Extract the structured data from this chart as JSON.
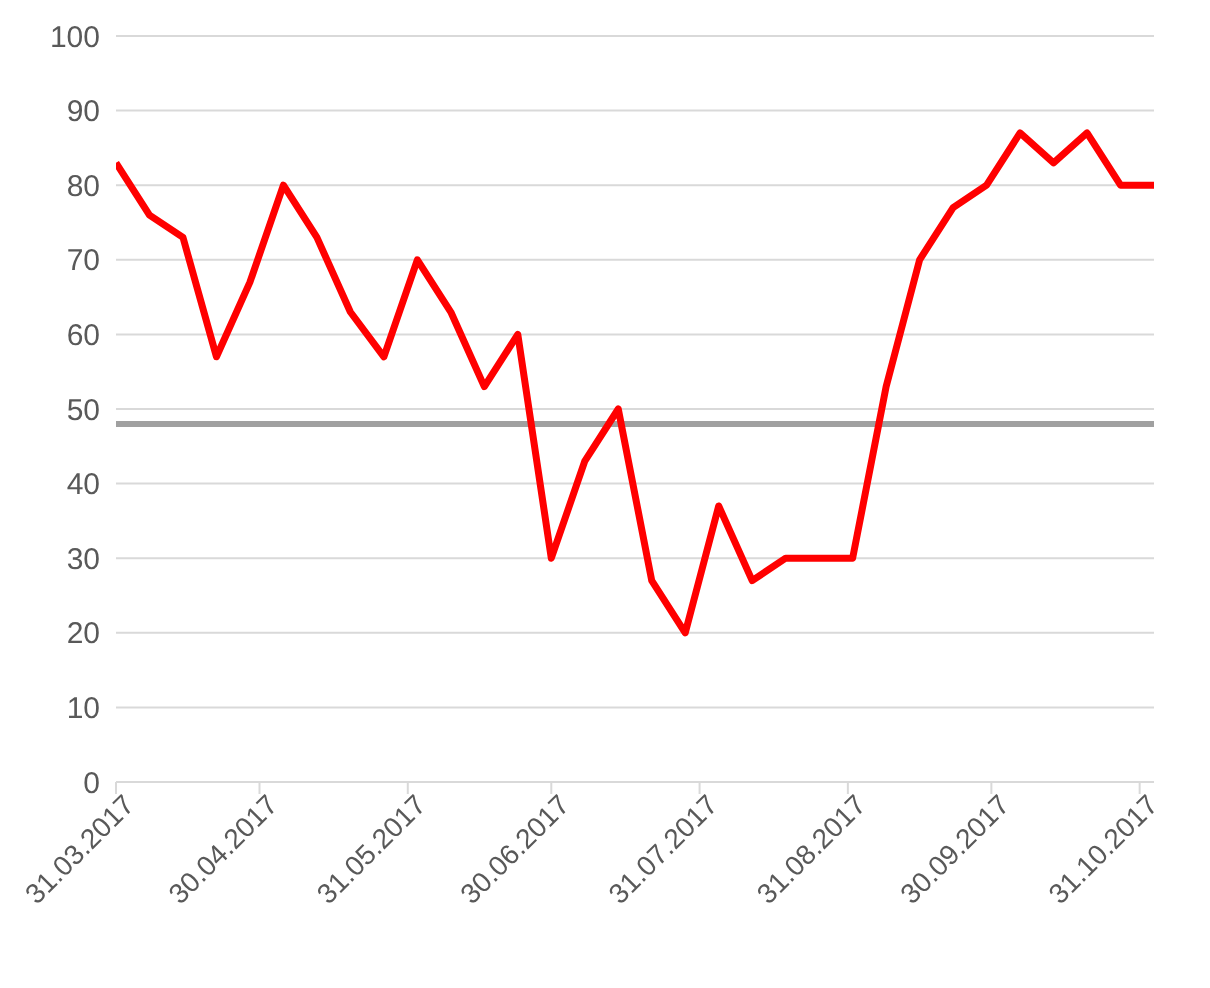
{
  "chart_data": {
    "type": "line",
    "x": [
      "2017-03-31",
      "2017-04-07",
      "2017-04-14",
      "2017-04-21",
      "2017-04-28",
      "2017-05-05",
      "2017-05-12",
      "2017-05-19",
      "2017-05-26",
      "2017-06-02",
      "2017-06-09",
      "2017-06-16",
      "2017-06-23",
      "2017-06-30",
      "2017-07-07",
      "2017-07-14",
      "2017-07-21",
      "2017-07-28",
      "2017-08-04",
      "2017-08-11",
      "2017-08-18",
      "2017-08-25",
      "2017-09-01",
      "2017-09-08",
      "2017-09-15",
      "2017-09-22",
      "2017-09-29",
      "2017-10-06",
      "2017-10-13",
      "2017-10-20",
      "2017-10-27",
      "2017-11-03"
    ],
    "series": [
      {
        "color": "#ff0000",
        "values": [
          83,
          76,
          73,
          57,
          67,
          80,
          73,
          63,
          57,
          70,
          63,
          53,
          60,
          30,
          43,
          50,
          27,
          20,
          37,
          27,
          30,
          30,
          30,
          53,
          70,
          77,
          80,
          87,
          83,
          87,
          80,
          80
        ]
      }
    ],
    "xlim": [
      "2017-03-31",
      "2017-11-03"
    ],
    "xticks": [
      {
        "value": "2017-03-31",
        "label": "31.03.2017"
      },
      {
        "value": "2017-04-30",
        "label": "30.04.2017"
      },
      {
        "value": "2017-05-31",
        "label": "31.05.2017"
      },
      {
        "value": "2017-06-30",
        "label": "30.06.2017"
      },
      {
        "value": "2017-07-31",
        "label": "31.07.2017"
      },
      {
        "value": "2017-08-31",
        "label": "31.08.2017"
      },
      {
        "value": "2017-09-30",
        "label": "30.09.2017"
      },
      {
        "value": "2017-10-31",
        "label": "31.10.2017"
      }
    ],
    "ylim": [
      0,
      100
    ],
    "yticks": [
      0,
      10,
      20,
      30,
      40,
      50,
      60,
      70,
      80,
      90,
      100
    ],
    "grid": "y",
    "legend": false,
    "marker": "none",
    "line_style": "solid",
    "ref_lines": [
      {
        "axis": "y",
        "value": 48,
        "color": "#a0a0a0",
        "line_style": "solid"
      }
    ]
  }
}
